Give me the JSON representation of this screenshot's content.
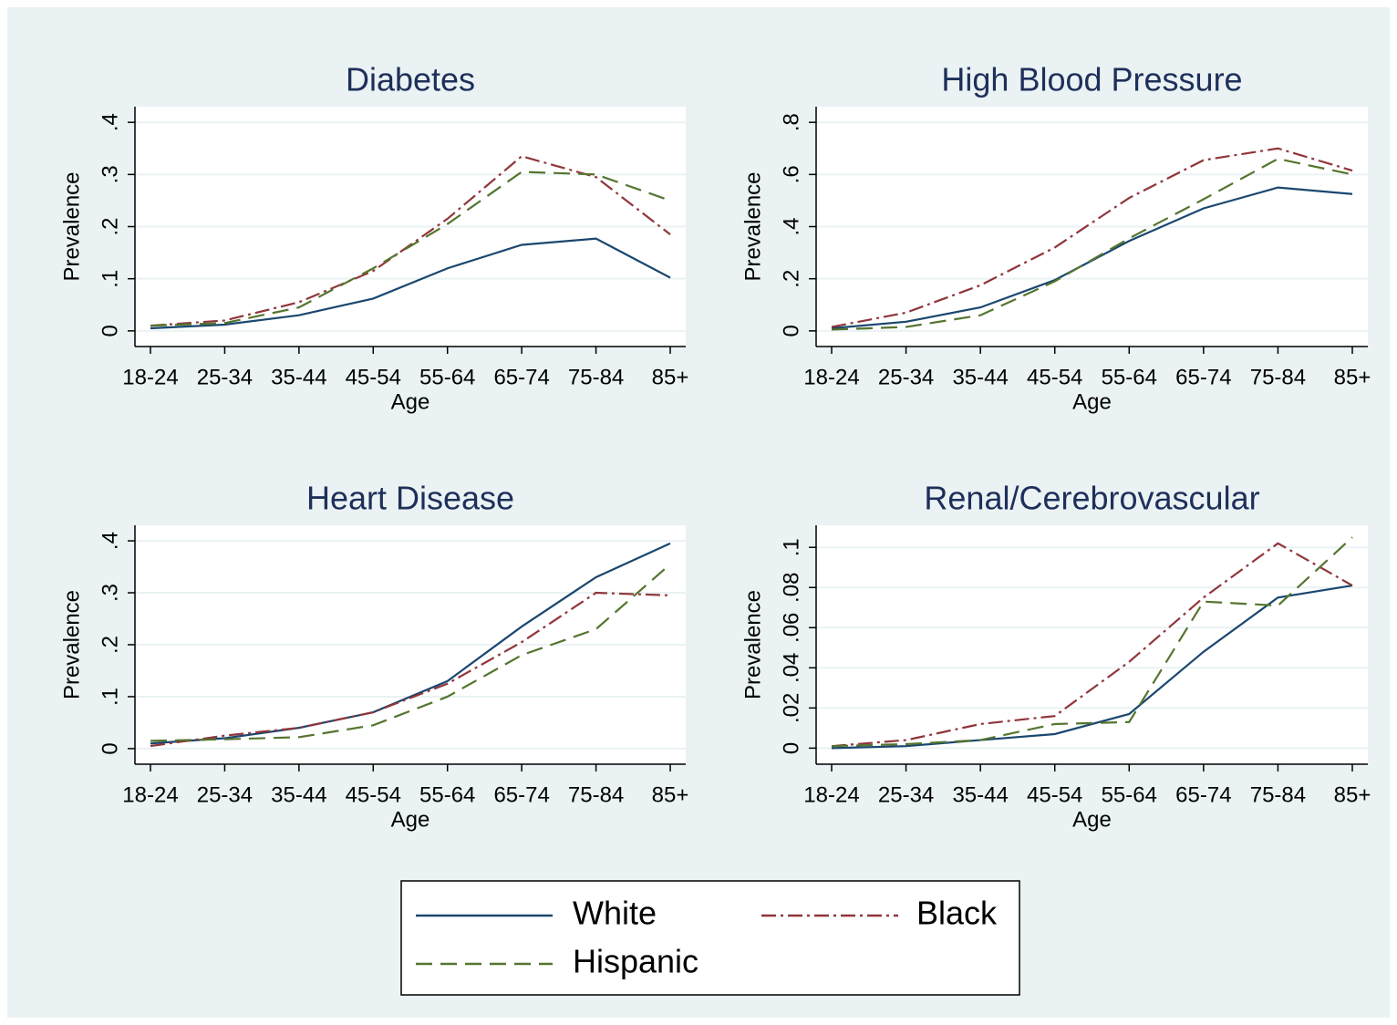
{
  "chart_data": [
    {
      "type": "line",
      "title": "Diabetes",
      "xlabel": "Age",
      "ylabel": "Prevalence",
      "categories": [
        "18-24",
        "25-34",
        "35-44",
        "45-54",
        "55-64",
        "65-74",
        "75-84",
        "85+"
      ],
      "series": [
        {
          "name": "White",
          "color": "#1a476f",
          "linestyle": "solid",
          "values": [
            0.005,
            0.012,
            0.03,
            0.062,
            0.12,
            0.165,
            0.177,
            0.102
          ]
        },
        {
          "name": "Black",
          "color": "#90353b",
          "linestyle": "dashdot",
          "values": [
            0.01,
            0.02,
            0.055,
            0.115,
            0.215,
            0.335,
            0.295,
            0.185
          ]
        },
        {
          "name": "Hispanic",
          "color": "#55752f",
          "linestyle": "dashed",
          "values": [
            0.01,
            0.015,
            0.045,
            0.12,
            0.205,
            0.305,
            0.3,
            0.25
          ]
        }
      ],
      "ylim": [
        -0.03,
        0.43
      ],
      "yticks": [
        0,
        {
          "value": 0.1,
          "label": ".1"
        },
        {
          "value": 0.2,
          "label": ".2"
        },
        {
          "value": 0.3,
          "label": ".3"
        },
        {
          "value": 0.4,
          "label": ".4"
        }
      ],
      "grid": true
    },
    {
      "type": "line",
      "title": "High Blood Pressure",
      "xlabel": "Age",
      "ylabel": "Prevalence",
      "categories": [
        "18-24",
        "25-34",
        "35-44",
        "45-54",
        "55-64",
        "65-74",
        "75-84",
        "85+"
      ],
      "series": [
        {
          "name": "White",
          "color": "#1a476f",
          "linestyle": "solid",
          "values": [
            0.01,
            0.035,
            0.09,
            0.195,
            0.345,
            0.47,
            0.55,
            0.525
          ]
        },
        {
          "name": "Black",
          "color": "#90353b",
          "linestyle": "dashdot",
          "values": [
            0.015,
            0.07,
            0.175,
            0.32,
            0.51,
            0.655,
            0.7,
            0.615
          ]
        },
        {
          "name": "Hispanic",
          "color": "#55752f",
          "linestyle": "dashed",
          "values": [
            0.005,
            0.015,
            0.06,
            0.19,
            0.355,
            0.505,
            0.66,
            0.6
          ]
        }
      ],
      "ylim": [
        -0.06,
        0.86
      ],
      "yticks": [
        0,
        {
          "value": 0.2,
          "label": ".2"
        },
        {
          "value": 0.4,
          "label": ".4"
        },
        {
          "value": 0.6,
          "label": ".6"
        },
        {
          "value": 0.8,
          "label": ".8"
        }
      ],
      "grid": true
    },
    {
      "type": "line",
      "title": "Heart Disease",
      "xlabel": "Age",
      "ylabel": "Prevalence",
      "categories": [
        "18-24",
        "25-34",
        "35-44",
        "45-54",
        "55-64",
        "65-74",
        "75-84",
        "85+"
      ],
      "series": [
        {
          "name": "White",
          "color": "#1a476f",
          "linestyle": "solid",
          "values": [
            0.01,
            0.02,
            0.04,
            0.07,
            0.13,
            0.235,
            0.33,
            0.395
          ]
        },
        {
          "name": "Black",
          "color": "#90353b",
          "linestyle": "dashdot",
          "values": [
            0.005,
            0.025,
            0.04,
            0.07,
            0.125,
            0.205,
            0.3,
            0.295
          ]
        },
        {
          "name": "Hispanic",
          "color": "#55752f",
          "linestyle": "dashed",
          "values": [
            0.015,
            0.018,
            0.022,
            0.045,
            0.1,
            0.18,
            0.23,
            0.355
          ]
        }
      ],
      "ylim": [
        -0.03,
        0.43
      ],
      "yticks": [
        0,
        {
          "value": 0.1,
          "label": ".1"
        },
        {
          "value": 0.2,
          "label": ".2"
        },
        {
          "value": 0.3,
          "label": ".3"
        },
        {
          "value": 0.4,
          "label": ".4"
        }
      ],
      "grid": true
    },
    {
      "type": "line",
      "title": "Renal/Cerebrovascular",
      "xlabel": "Age",
      "ylabel": "Prevalence",
      "categories": [
        "18-24",
        "25-34",
        "35-44",
        "45-54",
        "55-64",
        "65-74",
        "75-84",
        "85+"
      ],
      "series": [
        {
          "name": "White",
          "color": "#1a476f",
          "linestyle": "solid",
          "values": [
            0,
            0.001,
            0.004,
            0.007,
            0.017,
            0.048,
            0.075,
            0.081
          ]
        },
        {
          "name": "Black",
          "color": "#90353b",
          "linestyle": "dashdot",
          "values": [
            0.001,
            0.004,
            0.012,
            0.016,
            0.043,
            0.075,
            0.102,
            0.081
          ]
        },
        {
          "name": "Hispanic",
          "color": "#55752f",
          "linestyle": "dashed",
          "values": [
            0.001,
            0.002,
            0.004,
            0.012,
            0.013,
            0.073,
            0.071,
            0.105
          ]
        }
      ],
      "ylim": [
        -0.008,
        0.111
      ],
      "yticks": [
        0,
        {
          "value": 0.02,
          "label": ".02"
        },
        {
          "value": 0.04,
          "label": ".04"
        },
        {
          "value": 0.06,
          "label": ".06"
        },
        {
          "value": 0.08,
          "label": ".08"
        },
        {
          "value": 0.1,
          "label": ".1"
        }
      ],
      "grid": true
    }
  ]
}
